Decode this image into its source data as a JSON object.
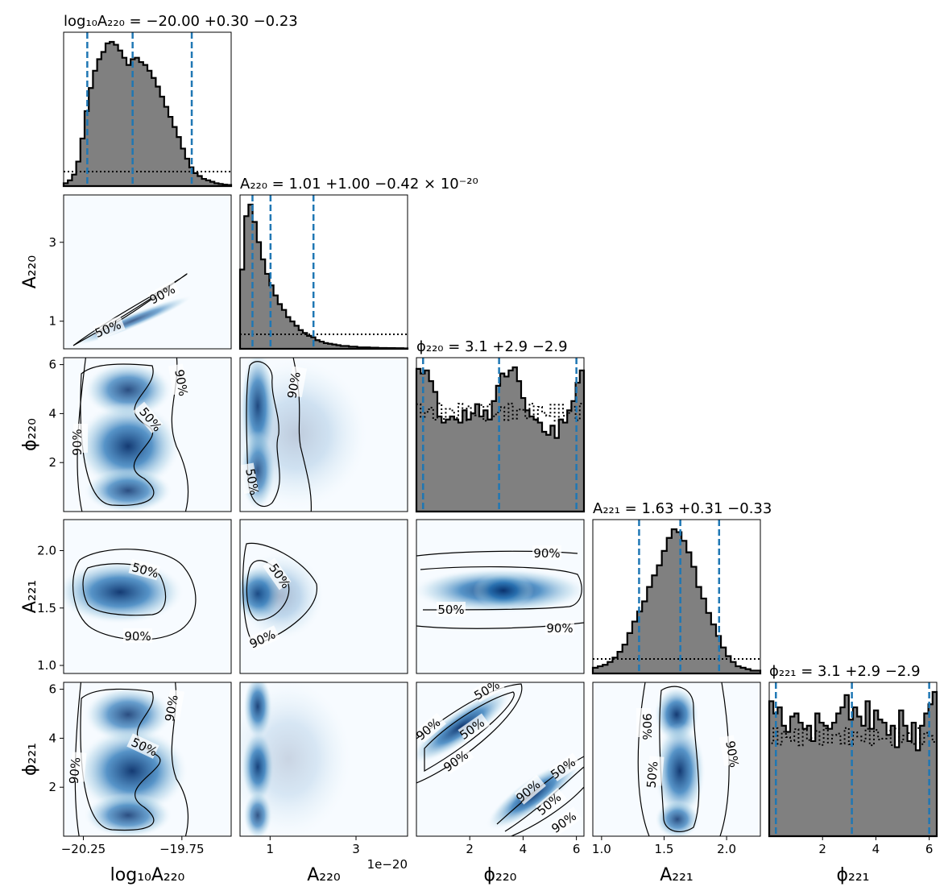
{
  "chart_data": {
    "type": "corner",
    "params": [
      {
        "key": "logA220",
        "axis_label": "log₁₀A₂₂₀",
        "title": "log₁₀A₂₂₀ = −20.00 +0.30 −0.23",
        "range": [
          -20.35,
          -19.5
        ],
        "quantiles": [
          -20.23,
          -20.0,
          -19.7
        ],
        "ticks": [
          -20.25,
          -19.75
        ],
        "tick_labels": [
          "−20.25",
          "−19.75"
        ],
        "offset_text": ""
      },
      {
        "key": "A220",
        "axis_label": "A₂₂₀",
        "title": "A₂₂₀ = 1.01 +1.00 −0.42 × 10⁻²⁰",
        "range": [
          0.3,
          4.2
        ],
        "quantiles": [
          0.59,
          1.01,
          2.01
        ],
        "ticks": [
          1,
          3
        ],
        "tick_labels": [
          "1",
          "3"
        ],
        "offset_text": "1e−20"
      },
      {
        "key": "phi220",
        "axis_label": "ϕ₂₂₀",
        "title": "ϕ₂₂₀ = 3.1 +2.9 −2.9",
        "range": [
          0,
          6.283
        ],
        "quantiles": [
          0.25,
          3.1,
          6.0
        ],
        "ticks": [
          2,
          4,
          6
        ],
        "tick_labels": [
          "2",
          "4",
          "6"
        ],
        "offset_text": ""
      },
      {
        "key": "A221",
        "axis_label": "A₂₂₁",
        "title": "A₂₂₁ = 1.63 +0.31 −0.33",
        "range": [
          0.93,
          2.27
        ],
        "quantiles": [
          1.3,
          1.63,
          1.94
        ],
        "ticks": [
          1.0,
          1.5,
          2.0
        ],
        "tick_labels": [
          "1.0",
          "1.5",
          "2.0"
        ],
        "y_ticks": [
          1.0,
          1.5,
          2.0
        ],
        "y_tick_labels": [
          "1.0",
          "1.5",
          "2.0"
        ],
        "offset_text": ""
      },
      {
        "key": "phi221",
        "axis_label": "ϕ₂₂₁",
        "title": "ϕ₂₂₁ = 3.1 +2.9 −2.9",
        "range": [
          0,
          6.283
        ],
        "quantiles": [
          0.25,
          3.1,
          6.0
        ],
        "ticks": [
          2,
          4,
          6
        ],
        "tick_labels": [
          "2",
          "4",
          "6"
        ],
        "offset_text": ""
      }
    ],
    "contour_labels": [
      "50%",
      "90%"
    ],
    "histograms": {
      "logA220": [
        0.02,
        0.04,
        0.08,
        0.17,
        0.33,
        0.52,
        0.68,
        0.8,
        0.88,
        0.93,
        0.99,
        1.0,
        0.98,
        0.94,
        0.89,
        0.84,
        0.88,
        0.89,
        0.86,
        0.84,
        0.8,
        0.75,
        0.69,
        0.62,
        0.55,
        0.48,
        0.41,
        0.34,
        0.26,
        0.19,
        0.13,
        0.09,
        0.07,
        0.05,
        0.04,
        0.03,
        0.02,
        0.015,
        0.01,
        0.008
      ],
      "A220": [
        0.55,
        0.92,
        1.0,
        0.88,
        0.74,
        0.62,
        0.52,
        0.44,
        0.37,
        0.31,
        0.27,
        0.22,
        0.19,
        0.16,
        0.13,
        0.11,
        0.09,
        0.08,
        0.06,
        0.05,
        0.04,
        0.035,
        0.03,
        0.025,
        0.02,
        0.02,
        0.015,
        0.015,
        0.01,
        0.01,
        0.01,
        0.008,
        0.008,
        0.006,
        0.006,
        0.005,
        0.005,
        0.004,
        0.004,
        0.003
      ],
      "phi220": [
        0.93,
        0.9,
        0.92,
        0.85,
        0.78,
        0.62,
        0.58,
        0.6,
        0.62,
        0.6,
        0.58,
        0.66,
        0.6,
        0.64,
        0.7,
        0.62,
        0.66,
        0.6,
        0.72,
        0.82,
        0.9,
        0.88,
        0.92,
        0.94,
        0.85,
        0.74,
        0.66,
        0.62,
        0.6,
        0.58,
        0.52,
        0.5,
        0.56,
        0.48,
        0.6,
        0.58,
        0.66,
        0.72,
        0.84,
        0.92
      ],
      "A221": [
        0.04,
        0.05,
        0.06,
        0.08,
        0.11,
        0.15,
        0.2,
        0.28,
        0.36,
        0.43,
        0.5,
        0.6,
        0.68,
        0.75,
        0.85,
        0.94,
        1.0,
        0.98,
        0.92,
        0.84,
        0.74,
        0.6,
        0.52,
        0.42,
        0.34,
        0.26,
        0.18,
        0.12,
        0.08,
        0.05,
        0.04,
        0.03,
        0.02,
        0.02
      ],
      "phi221": [
        0.88,
        0.8,
        0.84,
        0.72,
        0.68,
        0.78,
        0.8,
        0.74,
        0.7,
        0.72,
        0.62,
        0.8,
        0.74,
        0.72,
        0.7,
        0.74,
        0.8,
        0.84,
        0.92,
        0.76,
        0.84,
        0.78,
        0.72,
        0.88,
        0.7,
        0.82,
        0.76,
        0.74,
        0.66,
        0.72,
        0.58,
        0.82,
        0.72,
        0.62,
        0.74,
        0.56,
        0.72,
        0.8,
        0.86,
        0.94
      ]
    }
  }
}
